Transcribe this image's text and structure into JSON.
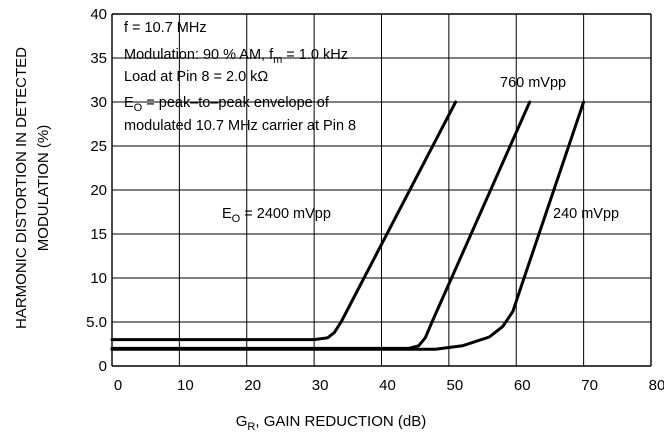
{
  "chart_data": {
    "type": "line",
    "xlabel_main": "G",
    "xlabel_sub": "R",
    "xlabel_rest": ", GAIN REDUCTION (dB)",
    "ylabel_line1": "HARMONIC DISTORTION IN DETECTED",
    "ylabel_line2": "MODULATION (%)",
    "xlim": [
      0,
      80
    ],
    "ylim": [
      0,
      40
    ],
    "grid": true,
    "x_ticks": [
      0,
      10,
      20,
      30,
      40,
      50,
      60,
      70,
      80
    ],
    "x_tick_labels": [
      "0",
      "10",
      "20",
      "30",
      "40",
      "50",
      "60",
      "70",
      "80"
    ],
    "y_ticks": [
      0,
      5,
      10,
      15,
      20,
      25,
      30,
      35,
      40
    ],
    "y_tick_labels": [
      "0",
      "5.0",
      "10",
      "15",
      "20",
      "25",
      "30",
      "35",
      "40"
    ],
    "annotations": {
      "line1": "f = 10.7 MHz",
      "line2_pre": "Modulation: 90 % AM, f",
      "line2_sub": "m",
      "line2_post": " = 1.0 kHz",
      "line3": "Load at Pin 8 = 2.0 kΩ",
      "line4_pre": "E",
      "line4_sub": "O",
      "line4_post": " = peak–to–peak envelope of",
      "line5": "modulated 10.7 MHz carrier at Pin 8"
    },
    "series": [
      {
        "name_pre": "E",
        "name_sub": "O",
        "name_post": " = 2400 mVpp",
        "x": [
          0,
          30,
          32,
          33,
          34,
          51
        ],
        "y": [
          3,
          3,
          3.2,
          3.8,
          5,
          30
        ]
      },
      {
        "name_pre": "",
        "name_sub": "",
        "name_post": "760 mVpp",
        "x": [
          0,
          44,
          45.5,
          46.5,
          47.5,
          62
        ],
        "y": [
          2,
          2,
          2.3,
          3.2,
          5,
          30
        ]
      },
      {
        "name_pre": "",
        "name_sub": "",
        "name_post": "240 mVpp",
        "x": [
          0,
          48,
          52,
          56,
          58,
          59.5,
          60.5,
          70
        ],
        "y": [
          1.9,
          1.9,
          2.3,
          3.3,
          4.5,
          6.2,
          8.5,
          30
        ]
      }
    ]
  }
}
